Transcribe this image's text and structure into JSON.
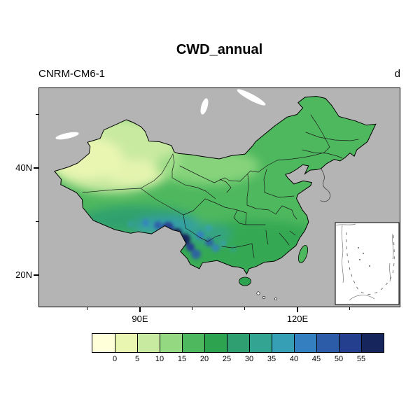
{
  "header": {
    "title": "CWD_annual",
    "model_label": "CNRM-CM6-1",
    "units_label": "d"
  },
  "axes": {
    "y_ticks": [
      "40N",
      "20N"
    ],
    "x_ticks": [
      "90E",
      "120E"
    ]
  },
  "colorbar": {
    "labels": [
      "0",
      "5",
      "10",
      "15",
      "20",
      "25",
      "30",
      "35",
      "40",
      "45",
      "50",
      "55"
    ],
    "colors": [
      "#ffffd9",
      "#e9f6b1",
      "#c8e9a0",
      "#94d982",
      "#4eb85e",
      "#2ea34f",
      "#2f9e70",
      "#33a392",
      "#379fb5",
      "#337fc0",
      "#2c5ca8",
      "#253f8f",
      "#16265c"
    ]
  },
  "colors": {
    "plot_background": "#b4b4b4",
    "page_background": "#ffffff",
    "outline": "#000000"
  },
  "inset": {
    "description": "South China Sea inset box"
  },
  "chart_data": {
    "type": "heatmap",
    "title": "CWD_annual",
    "subtitle_left": "CNRM-CM6-1",
    "units": "d",
    "geography": "China with provincial boundaries, South China Sea inset at bottom right",
    "x_axis": {
      "ticks": [
        "90E",
        "120E"
      ]
    },
    "y_axis": {
      "ticks": [
        "20N",
        "40N"
      ]
    },
    "levels": [
      0,
      5,
      10,
      15,
      20,
      25,
      30,
      35,
      40,
      45,
      50,
      55
    ],
    "palette": [
      "#ffffd9",
      "#e9f6b1",
      "#c8e9a0",
      "#94d982",
      "#4eb85e",
      "#2ea34f",
      "#2f9e70",
      "#33a392",
      "#379fb5",
      "#337fc0",
      "#2c5ca8",
      "#253f8f",
      "#16265c"
    ],
    "legend_position": "bottom",
    "regions": [
      {
        "name": "western Xinjiang",
        "value_days": "0-5"
      },
      {
        "name": "Xinjiang / Tarim basin",
        "value_days": "5-10"
      },
      {
        "name": "north and northeast China",
        "value_days": "10-20"
      },
      {
        "name": "central-eastern China",
        "value_days": "15-25"
      },
      {
        "name": "southern China",
        "value_days": "20-30"
      },
      {
        "name": "Tibetan Plateau south flank",
        "value_days": "30-45"
      },
      {
        "name": "southeast Tibet / Yunnan-Guizhou highlands",
        "value_days": "45-55+"
      }
    ]
  }
}
